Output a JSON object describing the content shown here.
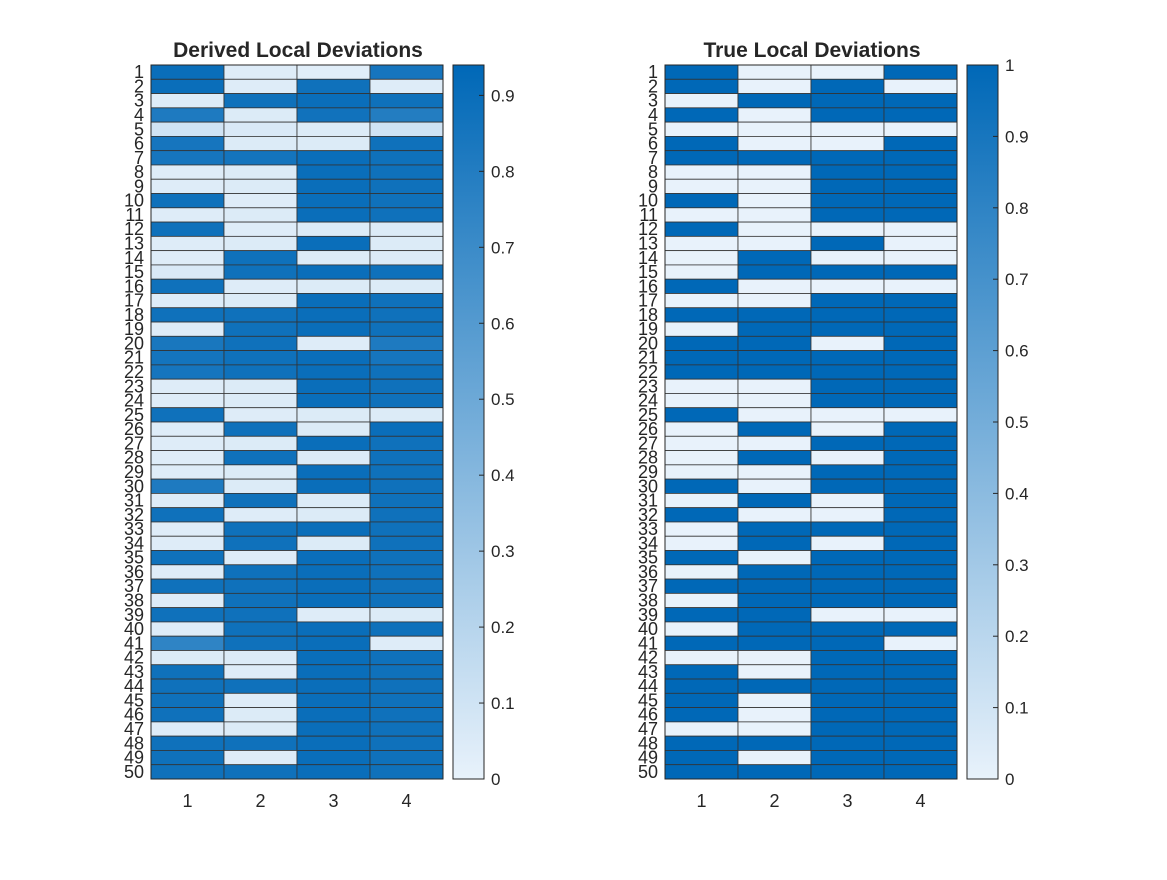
{
  "chart_data": [
    {
      "type": "heatmap",
      "title": "Derived Local Deviations",
      "x_categories": [
        "1",
        "2",
        "3",
        "4"
      ],
      "y_categories": [
        "1",
        "2",
        "3",
        "4",
        "5",
        "6",
        "7",
        "8",
        "9",
        "10",
        "11",
        "12",
        "13",
        "14",
        "15",
        "16",
        "17",
        "18",
        "19",
        "20",
        "21",
        "22",
        "23",
        "24",
        "25",
        "26",
        "27",
        "28",
        "29",
        "30",
        "31",
        "32",
        "33",
        "34",
        "35",
        "36",
        "37",
        "38",
        "39",
        "40",
        "41",
        "42",
        "43",
        "44",
        "45",
        "46",
        "47",
        "48",
        "49",
        "50"
      ],
      "colorbar": {
        "min": 0,
        "max": 0.94,
        "ticks": [
          0,
          0.1,
          0.2,
          0.3,
          0.4,
          0.5,
          0.6,
          0.7,
          0.8,
          0.9
        ]
      },
      "colormap": {
        "low": "#e8f2fb",
        "high": "#0068b7"
      },
      "values": [
        [
          0.9,
          0.04,
          0.03,
          0.85
        ],
        [
          0.9,
          0.04,
          0.88,
          0.04
        ],
        [
          0.04,
          0.88,
          0.9,
          0.88
        ],
        [
          0.82,
          0.05,
          0.87,
          0.8
        ],
        [
          0.1,
          0.06,
          0.05,
          0.1
        ],
        [
          0.85,
          0.05,
          0.05,
          0.88
        ],
        [
          0.85,
          0.86,
          0.9,
          0.88
        ],
        [
          0.04,
          0.05,
          0.9,
          0.88
        ],
        [
          0.04,
          0.05,
          0.9,
          0.88
        ],
        [
          0.88,
          0.04,
          0.9,
          0.88
        ],
        [
          0.04,
          0.05,
          0.9,
          0.88
        ],
        [
          0.88,
          0.04,
          0.05,
          0.05
        ],
        [
          0.04,
          0.05,
          0.9,
          0.05
        ],
        [
          0.04,
          0.88,
          0.05,
          0.05
        ],
        [
          0.06,
          0.88,
          0.9,
          0.88
        ],
        [
          0.88,
          0.04,
          0.05,
          0.05
        ],
        [
          0.04,
          0.05,
          0.9,
          0.88
        ],
        [
          0.88,
          0.88,
          0.9,
          0.88
        ],
        [
          0.04,
          0.88,
          0.9,
          0.88
        ],
        [
          0.84,
          0.88,
          0.04,
          0.82
        ],
        [
          0.86,
          0.88,
          0.9,
          0.85
        ],
        [
          0.85,
          0.88,
          0.9,
          0.88
        ],
        [
          0.04,
          0.05,
          0.9,
          0.88
        ],
        [
          0.04,
          0.05,
          0.9,
          0.88
        ],
        [
          0.88,
          0.04,
          0.05,
          0.05
        ],
        [
          0.04,
          0.88,
          0.05,
          0.9
        ],
        [
          0.04,
          0.05,
          0.9,
          0.88
        ],
        [
          0.04,
          0.88,
          0.05,
          0.88
        ],
        [
          0.04,
          0.05,
          0.9,
          0.88
        ],
        [
          0.82,
          0.05,
          0.9,
          0.88
        ],
        [
          0.04,
          0.88,
          0.05,
          0.88
        ],
        [
          0.88,
          0.04,
          0.05,
          0.88
        ],
        [
          0.04,
          0.88,
          0.9,
          0.88
        ],
        [
          0.04,
          0.88,
          0.05,
          0.88
        ],
        [
          0.88,
          0.04,
          0.9,
          0.88
        ],
        [
          0.04,
          0.88,
          0.9,
          0.88
        ],
        [
          0.88,
          0.88,
          0.9,
          0.88
        ],
        [
          0.04,
          0.88,
          0.9,
          0.88
        ],
        [
          0.88,
          0.88,
          0.04,
          0.05
        ],
        [
          0.04,
          0.88,
          0.9,
          0.88
        ],
        [
          0.75,
          0.88,
          0.9,
          0.04
        ],
        [
          0.05,
          0.05,
          0.9,
          0.88
        ],
        [
          0.88,
          0.04,
          0.9,
          0.88
        ],
        [
          0.88,
          0.88,
          0.9,
          0.88
        ],
        [
          0.88,
          0.04,
          0.9,
          0.88
        ],
        [
          0.88,
          0.05,
          0.9,
          0.88
        ],
        [
          0.04,
          0.05,
          0.9,
          0.88
        ],
        [
          0.88,
          0.88,
          0.9,
          0.88
        ],
        [
          0.88,
          0.04,
          0.9,
          0.88
        ],
        [
          0.88,
          0.88,
          0.9,
          0.88
        ]
      ]
    },
    {
      "type": "heatmap",
      "title": "True Local Deviations",
      "x_categories": [
        "1",
        "2",
        "3",
        "4"
      ],
      "y_categories": [
        "1",
        "2",
        "3",
        "4",
        "5",
        "6",
        "7",
        "8",
        "9",
        "10",
        "11",
        "12",
        "13",
        "14",
        "15",
        "16",
        "17",
        "18",
        "19",
        "20",
        "21",
        "22",
        "23",
        "24",
        "25",
        "26",
        "27",
        "28",
        "29",
        "30",
        "31",
        "32",
        "33",
        "34",
        "35",
        "36",
        "37",
        "38",
        "39",
        "40",
        "41",
        "42",
        "43",
        "44",
        "45",
        "46",
        "47",
        "48",
        "49",
        "50"
      ],
      "colorbar": {
        "min": 0,
        "max": 1,
        "ticks": [
          0,
          0.1,
          0.2,
          0.3,
          0.4,
          0.5,
          0.6,
          0.7,
          0.8,
          0.9,
          1
        ]
      },
      "colormap": {
        "low": "#e8f2fb",
        "high": "#0068b7"
      },
      "values": [
        [
          1,
          0,
          0,
          1
        ],
        [
          1,
          0,
          1,
          0
        ],
        [
          0,
          1,
          1,
          1
        ],
        [
          1,
          0,
          1,
          1
        ],
        [
          0,
          0,
          0,
          0
        ],
        [
          1,
          0,
          0,
          1
        ],
        [
          1,
          1,
          1,
          1
        ],
        [
          0,
          0,
          1,
          1
        ],
        [
          0,
          0,
          1,
          1
        ],
        [
          1,
          0,
          1,
          1
        ],
        [
          0,
          0,
          1,
          1
        ],
        [
          1,
          0,
          0,
          0
        ],
        [
          0,
          0,
          1,
          0
        ],
        [
          0,
          1,
          0,
          0
        ],
        [
          0,
          1,
          1,
          1
        ],
        [
          1,
          0,
          0,
          0
        ],
        [
          0,
          0,
          1,
          1
        ],
        [
          1,
          1,
          1,
          1
        ],
        [
          0,
          1,
          1,
          1
        ],
        [
          1,
          1,
          0,
          1
        ],
        [
          1,
          1,
          1,
          1
        ],
        [
          1,
          1,
          1,
          1
        ],
        [
          0,
          0,
          1,
          1
        ],
        [
          0,
          0,
          1,
          1
        ],
        [
          1,
          0,
          0,
          0
        ],
        [
          0,
          1,
          0,
          1
        ],
        [
          0,
          0,
          1,
          1
        ],
        [
          0,
          1,
          0,
          1
        ],
        [
          0,
          0,
          1,
          1
        ],
        [
          1,
          0,
          1,
          1
        ],
        [
          0,
          1,
          0,
          1
        ],
        [
          1,
          0,
          0,
          1
        ],
        [
          0,
          1,
          1,
          1
        ],
        [
          0,
          1,
          0,
          1
        ],
        [
          1,
          0,
          1,
          1
        ],
        [
          0,
          1,
          1,
          1
        ],
        [
          1,
          1,
          1,
          1
        ],
        [
          0,
          1,
          1,
          1
        ],
        [
          1,
          1,
          0,
          0
        ],
        [
          0,
          1,
          1,
          1
        ],
        [
          1,
          1,
          1,
          0
        ],
        [
          0,
          0,
          1,
          1
        ],
        [
          1,
          0,
          1,
          1
        ],
        [
          1,
          1,
          1,
          1
        ],
        [
          1,
          0,
          1,
          1
        ],
        [
          1,
          0,
          1,
          1
        ],
        [
          0,
          0,
          1,
          1
        ],
        [
          1,
          1,
          1,
          1
        ],
        [
          1,
          0,
          1,
          1
        ],
        [
          1,
          1,
          1,
          1
        ]
      ]
    }
  ]
}
